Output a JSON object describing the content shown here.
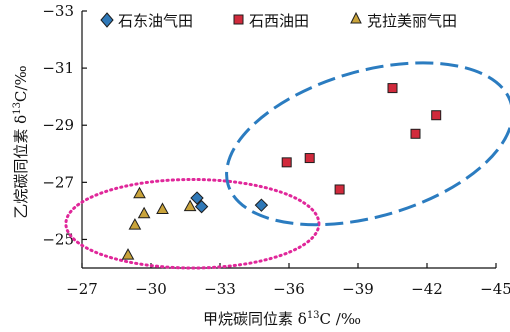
{
  "chart_data": {
    "type": "scatter",
    "xlabel_main": "甲烷碳同位素 δ",
    "xlabel_sup": "13",
    "xlabel_unit": "C /‰",
    "ylabel_main": "乙烷碳同位素 δ",
    "ylabel_sup": "13",
    "ylabel_unit": "C/‰",
    "xlim": [
      -27,
      -45
    ],
    "ylim": [
      -24,
      -33
    ],
    "x_ticks": [
      -27,
      -30,
      -33,
      -36,
      -39,
      -42,
      -45
    ],
    "y_ticks": [
      -25,
      -27,
      -29,
      -31,
      -33
    ],
    "x_tick_labels": [
      "−27",
      "−30",
      "−33",
      "−36",
      "−39",
      "−42",
      "−45"
    ],
    "y_tick_labels": [
      "−25",
      "−27",
      "−29",
      "−31",
      "−33"
    ],
    "grid": false,
    "legend_position": "top",
    "series": [
      {
        "name": "石东油气田",
        "marker": "diamond",
        "color": "#2f78b7",
        "points": [
          {
            "x": -32.0,
            "y": -26.45
          },
          {
            "x": -32.2,
            "y": -26.15
          },
          {
            "x": -34.8,
            "y": -26.2
          }
        ]
      },
      {
        "name": "石西油田",
        "marker": "square",
        "color": "#d12a3c",
        "points": [
          {
            "x": -35.9,
            "y": -27.7
          },
          {
            "x": -36.9,
            "y": -27.85
          },
          {
            "x": -38.2,
            "y": -26.75
          },
          {
            "x": -40.5,
            "y": -30.3
          },
          {
            "x": -41.5,
            "y": -28.7
          },
          {
            "x": -42.4,
            "y": -29.35
          }
        ]
      },
      {
        "name": "克拉美丽气田",
        "marker": "triangle",
        "color": "#c9a33a",
        "points": [
          {
            "x": -29.5,
            "y": -26.6
          },
          {
            "x": -30.5,
            "y": -26.05
          },
          {
            "x": -29.7,
            "y": -25.9
          },
          {
            "x": -31.7,
            "y": -26.15
          },
          {
            "x": -29.3,
            "y": -25.5
          },
          {
            "x": -29.0,
            "y": -24.45
          }
        ]
      }
    ],
    "annotations": [
      {
        "name": "pink-dotted-ellipse",
        "shape": "ellipse",
        "style": "dotted",
        "color": "#e0279a",
        "center": [
          -31.8,
          -25.55
        ],
        "rx_data": 5.5,
        "ry_data": 1.55
      },
      {
        "name": "blue-dashed-ellipse",
        "shape": "ellipse",
        "style": "dashed",
        "color": "#2b7cc0",
        "center": [
          -39.5,
          -28.35
        ],
        "rx_data": 6.4,
        "ry_data": 2.55,
        "rotation_deg": -16
      }
    ]
  }
}
